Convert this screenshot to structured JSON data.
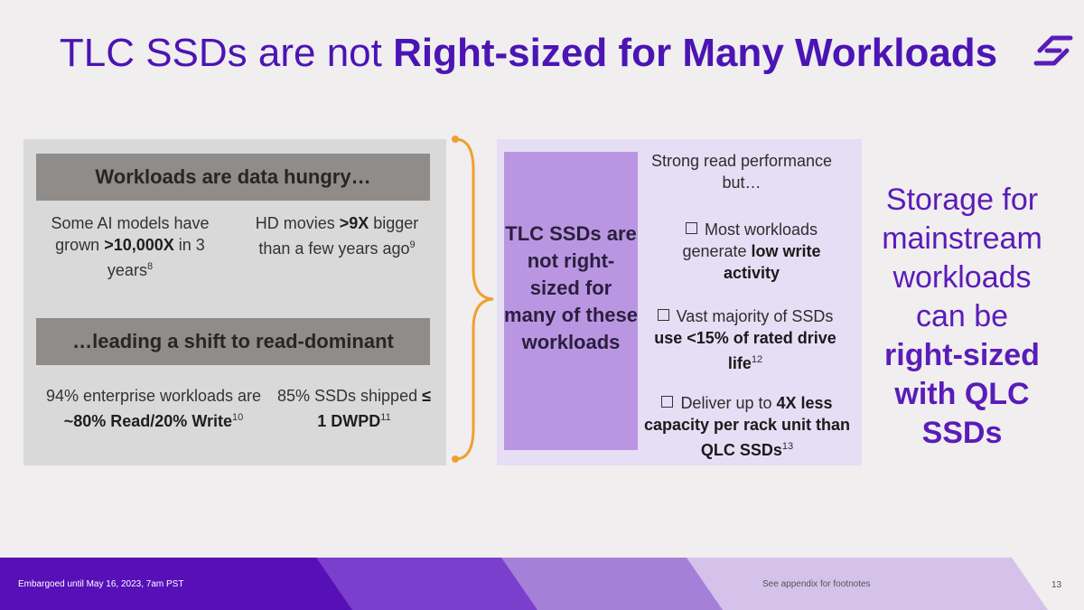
{
  "title": {
    "plain": "TLC SSDs are not ",
    "bold": "Right-sized for Many Workloads"
  },
  "left": {
    "header1": "Workloads are data hungry…",
    "stat1": {
      "a": "Some AI models have grown ",
      "b": ">10,000X",
      "c": " in 3 years",
      "sup": "8"
    },
    "stat2": {
      "a": "HD movies ",
      "b": ">9X",
      "c": " bigger than a few years ago",
      "sup": "9"
    },
    "header2": "…leading a shift to read-dominant",
    "stat3": {
      "a": "94% enterprise workloads are ",
      "b": "~80% Read/20% Write",
      "sup": "10"
    },
    "stat4": {
      "a": "85% SSDs shipped ",
      "b": "≤ 1 DWPD",
      "sup": "11"
    }
  },
  "middle": {
    "purple_label": "TLC SSDs are not right-sized for many of these workloads",
    "intro": "Strong read performance but…",
    "bullet1": {
      "a": "Most workloads generate ",
      "b": "low write activity"
    },
    "bullet2": {
      "a": "Vast majority of SSDs ",
      "b": "use <15% of rated drive life",
      "sup": "12"
    },
    "bullet3": {
      "a": "Deliver up to ",
      "b": "4X less capacity per rack unit than QLC SSDs",
      "sup": "13"
    }
  },
  "side": {
    "plain": "Storage for mainstream workloads can be",
    "bold": "right-sized with QLC SSDs"
  },
  "footer": {
    "embargo": "Embargoed until May 16, 2023, 7am PST",
    "note": "See appendix for footnotes",
    "page": "13"
  },
  "colors": {
    "brand": "#4b14b4",
    "accent_brace": "#f0a030"
  },
  "icons": {
    "logo": "solidigm-logo-icon"
  }
}
